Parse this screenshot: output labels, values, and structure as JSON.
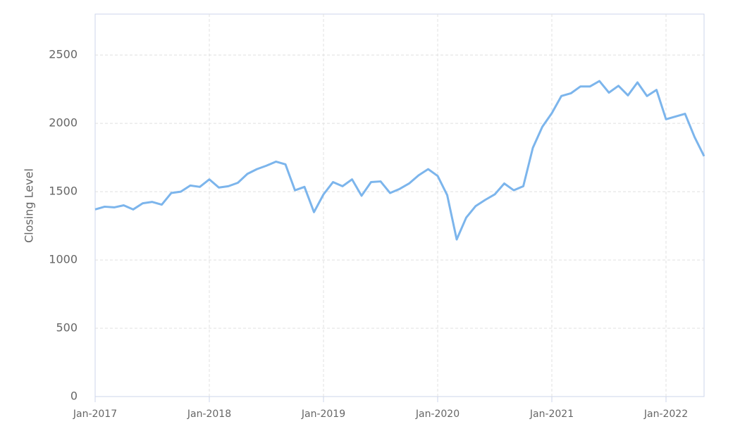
{
  "chart_data": {
    "type": "line",
    "y_label": "Closing Level",
    "x": [
      "2017-01",
      "2017-02",
      "2017-03",
      "2017-04",
      "2017-05",
      "2017-06",
      "2017-07",
      "2017-08",
      "2017-09",
      "2017-10",
      "2017-11",
      "2017-12",
      "2018-01",
      "2018-02",
      "2018-03",
      "2018-04",
      "2018-05",
      "2018-06",
      "2018-07",
      "2018-08",
      "2018-09",
      "2018-10",
      "2018-11",
      "2018-12",
      "2019-01",
      "2019-02",
      "2019-03",
      "2019-04",
      "2019-05",
      "2019-06",
      "2019-07",
      "2019-08",
      "2019-09",
      "2019-10",
      "2019-11",
      "2019-12",
      "2020-01",
      "2020-02",
      "2020-03",
      "2020-04",
      "2020-05",
      "2020-06",
      "2020-07",
      "2020-08",
      "2020-09",
      "2020-10",
      "2020-11",
      "2020-12",
      "2021-01",
      "2021-02",
      "2021-03",
      "2021-04",
      "2021-05",
      "2021-06",
      "2021-07",
      "2021-08",
      "2021-09",
      "2021-10",
      "2021-11",
      "2021-12",
      "2022-01",
      "2022-02",
      "2022-03",
      "2022-04",
      "2022-05"
    ],
    "series": [
      {
        "name": "Closing Level",
        "color": "#7cb5ec",
        "values": [
          1370,
          1390,
          1385,
          1400,
          1370,
          1415,
          1425,
          1405,
          1490,
          1500,
          1545,
          1535,
          1590,
          1530,
          1540,
          1565,
          1630,
          1665,
          1690,
          1720,
          1700,
          1510,
          1535,
          1350,
          1480,
          1570,
          1540,
          1590,
          1470,
          1570,
          1575,
          1490,
          1520,
          1560,
          1620,
          1665,
          1615,
          1475,
          1150,
          1310,
          1395,
          1440,
          1480,
          1560,
          1510,
          1540,
          1820,
          1975,
          2075,
          2200,
          2220,
          2270,
          2270,
          2310,
          2225,
          2275,
          2205,
          2300,
          2200,
          2245,
          2030,
          2050,
          2070,
          1900,
          1760
        ]
      }
    ],
    "xlim": [
      "2017-01",
      "2022-05"
    ],
    "xticks": [
      {
        "value": "2017-01",
        "label": "Jan-2017"
      },
      {
        "value": "2018-01",
        "label": "Jan-2018"
      },
      {
        "value": "2019-01",
        "label": "Jan-2019"
      },
      {
        "value": "2020-01",
        "label": "Jan-2020"
      },
      {
        "value": "2021-01",
        "label": "Jan-2021"
      },
      {
        "value": "2022-01",
        "label": "Jan-2022"
      }
    ],
    "ylim": [
      0,
      2800
    ],
    "yticks": [
      0,
      500,
      1000,
      1500,
      2000,
      2500
    ],
    "grid": true
  }
}
